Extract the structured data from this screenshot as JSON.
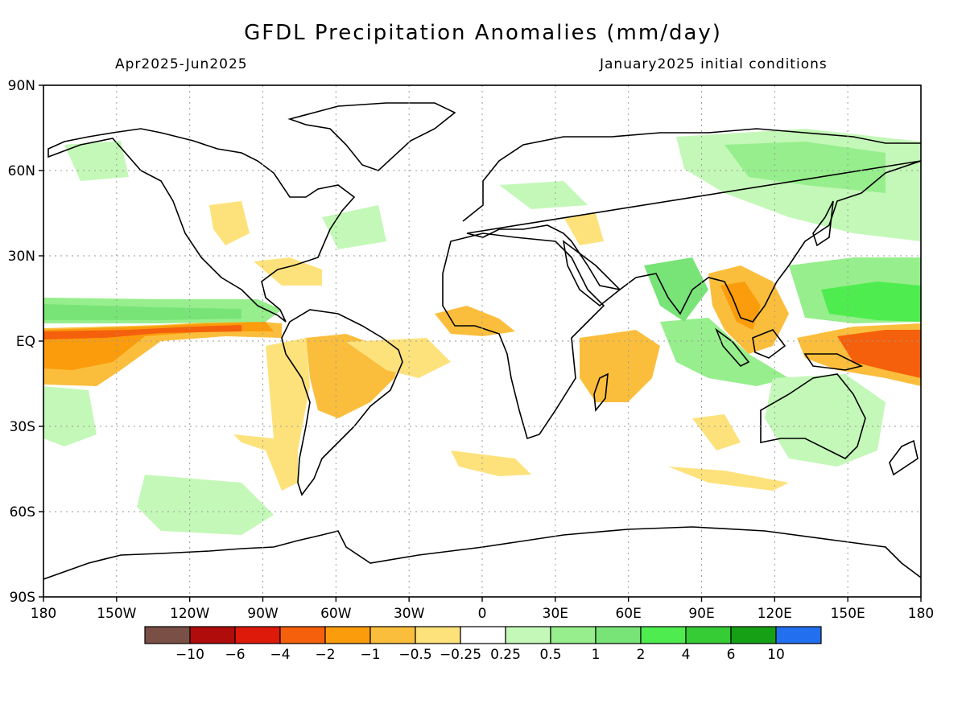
{
  "title": "GFDL Precipitation Anomalies (mm/day)",
  "subtitle_left": "Apr2025-Jun2025",
  "subtitle_right": "January2025 initial conditions",
  "axes": {
    "x_ticks": [
      "180",
      "150W",
      "120W",
      "90W",
      "60W",
      "30W",
      "0",
      "30E",
      "60E",
      "90E",
      "120E",
      "150E",
      "180"
    ],
    "x_values": [
      -180,
      -150,
      -120,
      -90,
      -60,
      -30,
      0,
      30,
      60,
      90,
      120,
      150,
      180
    ],
    "y_ticks": [
      "90N",
      "60N",
      "30N",
      "EQ",
      "30S",
      "60S",
      "90S"
    ],
    "y_values": [
      90,
      60,
      30,
      0,
      -30,
      -60,
      -90
    ],
    "xlim": [
      -180,
      180
    ],
    "ylim": [
      -90,
      90
    ],
    "grid": true
  },
  "colorbar": {
    "colors": [
      "#7a5046",
      "#b00c0c",
      "#de1a0a",
      "#f5600c",
      "#fa9c0c",
      "#fbbe3c",
      "#fde27c",
      "#ffffff",
      "#c4f8b8",
      "#96ee8c",
      "#78e478",
      "#4eec4e",
      "#36cc36",
      "#16a016",
      "#2270f0"
    ],
    "labels": [
      "-10",
      "-6",
      "-4",
      "-2",
      "-1",
      "-0.5",
      "-0.25",
      "0.25",
      "0.5",
      "1",
      "2",
      "4",
      "6",
      "10"
    ]
  },
  "chart_data": {
    "type": "heatmap",
    "title": "GFDL Precipitation Anomalies (mm/day)",
    "units": "mm/day",
    "regions": [
      {
        "lon": [
          -180,
          -95
        ],
        "lat": [
          0,
          8
        ],
        "value": -1.5
      },
      {
        "lon": [
          -180,
          -125
        ],
        "lat": [
          -12,
          0
        ],
        "value": -1.5
      },
      {
        "lon": [
          -180,
          -80
        ],
        "lat": [
          8,
          18
        ],
        "value": 1
      },
      {
        "lon": [
          -80,
          -35
        ],
        "lat": [
          -15,
          5
        ],
        "value": -0.5
      },
      {
        "lon": [
          -15,
          10
        ],
        "lat": [
          3,
          10
        ],
        "value": -1
      },
      {
        "lon": [
          40,
          65
        ],
        "lat": [
          -15,
          0
        ],
        "value": -1
      },
      {
        "lon": [
          90,
          125
        ],
        "lat": [
          0,
          25
        ],
        "value": -1
      },
      {
        "lon": [
          140,
          180
        ],
        "lat": [
          -10,
          5
        ],
        "value": -2
      },
      {
        "lon": [
          120,
          180
        ],
        "lat": [
          8,
          25
        ],
        "value": 2
      },
      {
        "lon": [
          60,
          100
        ],
        "lat": [
          -15,
          10
        ],
        "value": 1
      },
      {
        "lon": [
          70,
          180
        ],
        "lat": [
          50,
          75
        ],
        "value": 0.5
      }
    ]
  }
}
